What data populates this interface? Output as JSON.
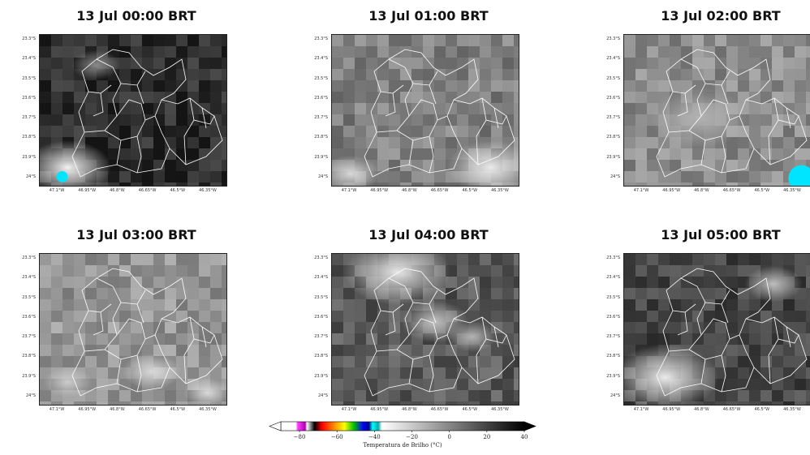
{
  "panels": [
    {
      "title": "13 Jul 00:00 BRT",
      "y_ticks": [
        "23.3°S",
        "23.4°S",
        "23.5°S",
        "23.6°S",
        "23.7°S",
        "23.8°S",
        "23.9°S",
        "24°S"
      ],
      "x_ticks": [
        "47.1°W",
        "46.95°W",
        "46.8°W",
        "46.65°W",
        "46.5°W",
        "46.35°W"
      ],
      "mean_brightness": 0.18,
      "bright_spots": [
        {
          "cx": 0.15,
          "cy": 0.88,
          "r": 0.18,
          "v": 0.95
        },
        {
          "cx": 0.3,
          "cy": 0.2,
          "r": 0.1,
          "v": 0.55
        }
      ],
      "cyan_spots": [
        {
          "cx": 0.12,
          "cy": 0.94,
          "r": 0.03
        }
      ]
    },
    {
      "title": "13 Jul 01:00 BRT",
      "y_ticks": [
        "23.3°S",
        "23.4°S",
        "23.5°S",
        "23.6°S",
        "23.7°S",
        "23.8°S",
        "23.9°S",
        "24°S"
      ],
      "x_ticks": [
        "47.1°W",
        "46.95°W",
        "46.8°W",
        "46.65°W",
        "46.5°W",
        "46.35°W"
      ],
      "mean_brightness": 0.5,
      "bright_spots": [
        {
          "cx": 0.85,
          "cy": 0.88,
          "r": 0.18,
          "v": 0.92
        },
        {
          "cx": 0.1,
          "cy": 0.92,
          "r": 0.12,
          "v": 0.85
        }
      ],
      "cyan_spots": []
    },
    {
      "title": "13 Jul 02:00 BRT",
      "y_ticks": [
        "23.3°S",
        "23.4°S",
        "23.5°S",
        "23.6°S",
        "23.7°S",
        "23.8°S",
        "23.9°S",
        "24°S"
      ],
      "x_ticks": [
        "47.1°W",
        "46.95°W",
        "46.8°W",
        "46.65°W",
        "46.5°W",
        "46.35°W"
      ],
      "mean_brightness": 0.55,
      "bright_spots": [
        {
          "cx": 0.4,
          "cy": 0.55,
          "r": 0.2,
          "v": 0.7
        }
      ],
      "cyan_spots": [
        {
          "cx": 0.95,
          "cy": 0.95,
          "r": 0.07
        }
      ]
    },
    {
      "title": "13 Jul 03:00 BRT",
      "y_ticks": [
        "23.3°S",
        "23.4°S",
        "23.5°S",
        "23.6°S",
        "23.7°S",
        "23.8°S",
        "23.9°S",
        "24°S"
      ],
      "x_ticks": [
        "47.1°W",
        "46.95°W",
        "46.8°W",
        "46.65°W",
        "46.5°W",
        "46.35°W"
      ],
      "mean_brightness": 0.58,
      "bright_spots": [
        {
          "cx": 0.6,
          "cy": 0.78,
          "r": 0.12,
          "v": 0.85
        },
        {
          "cx": 0.15,
          "cy": 0.85,
          "r": 0.1,
          "v": 0.8
        },
        {
          "cx": 0.9,
          "cy": 0.92,
          "r": 0.1,
          "v": 0.85
        }
      ],
      "cyan_spots": []
    },
    {
      "title": "13 Jul 04:00 BRT",
      "y_ticks": [
        "23.3°S",
        "23.4°S",
        "23.5°S",
        "23.6°S",
        "23.7°S",
        "23.8°S",
        "23.9°S",
        "24°S"
      ],
      "x_ticks": [
        "47.1°W",
        "46.95°W",
        "46.8°W",
        "46.65°W",
        "46.5°W",
        "46.35°W"
      ],
      "mean_brightness": 0.35,
      "bright_spots": [
        {
          "cx": 0.35,
          "cy": 0.12,
          "r": 0.22,
          "v": 0.9
        },
        {
          "cx": 0.55,
          "cy": 0.45,
          "r": 0.14,
          "v": 0.75
        },
        {
          "cx": 0.75,
          "cy": 0.55,
          "r": 0.1,
          "v": 0.7
        }
      ],
      "cyan_spots": []
    },
    {
      "title": "13 Jul 05:00 BRT",
      "y_ticks": [
        "23.3°S",
        "23.4°S",
        "23.5°S",
        "23.6°S",
        "23.7°S",
        "23.8°S",
        "23.9°S",
        "24°S"
      ],
      "x_ticks": [
        "47.1°W",
        "46.95°W",
        "46.8°W",
        "46.65°W",
        "46.5°W",
        "46.35°W"
      ],
      "mean_brightness": 0.28,
      "bright_spots": [
        {
          "cx": 0.22,
          "cy": 0.82,
          "r": 0.22,
          "v": 0.92
        },
        {
          "cx": 0.8,
          "cy": 0.2,
          "r": 0.12,
          "v": 0.75
        }
      ],
      "cyan_spots": []
    }
  ],
  "colorbar": {
    "label": "Temperatura de Brilho (°C)",
    "ticks": [
      -80,
      -60,
      -40,
      -20,
      0,
      20,
      40
    ],
    "range": [
      -90,
      40
    ],
    "stops": [
      {
        "value": -90,
        "color": "#ffffff"
      },
      {
        "value": -82,
        "color": "#ffffff"
      },
      {
        "value": -81,
        "color": "#ff40ff"
      },
      {
        "value": -77,
        "color": "#b000b0"
      },
      {
        "value": -76,
        "color": "#ffffff"
      },
      {
        "value": -72,
        "color": "#000000"
      },
      {
        "value": -68,
        "color": "#ff0000"
      },
      {
        "value": -62,
        "color": "#ff8000"
      },
      {
        "value": -56,
        "color": "#ffff00"
      },
      {
        "value": -51,
        "color": "#00c000"
      },
      {
        "value": -46,
        "color": "#0000ff"
      },
      {
        "value": -43,
        "color": "#000080"
      },
      {
        "value": -41,
        "color": "#00ffff"
      },
      {
        "value": -38,
        "color": "#00aaaa"
      },
      {
        "value": -36,
        "color": "#ffffff"
      },
      {
        "value": 40,
        "color": "#000000"
      }
    ]
  }
}
